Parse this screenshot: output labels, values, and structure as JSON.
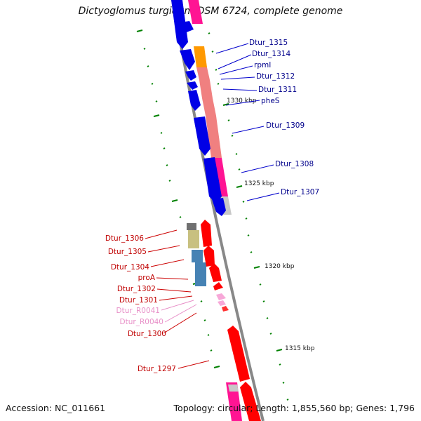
{
  "title": "Dictyoglomus turgidum DSM 6724, complete genome",
  "footer": {
    "accession_label": "Accession:",
    "accession": "NC_011661",
    "topology_label": "Topology:",
    "topology": "circular",
    "length_label": "Length:",
    "length": "1,855,560 bp",
    "genes_label": "Genes:",
    "genes": "1,796"
  },
  "scale_labels": [
    "1330 kbp",
    "1325 kbp",
    "1320 kbp",
    "1315 kbp"
  ],
  "colors": {
    "forward_gene": "#0000e6",
    "reverse_gene": "#ff0000",
    "label_forward": "#00008b",
    "label_reverse": "#c00000",
    "label_rna": "#e890c8",
    "cog_pink": "#ff1493",
    "cog_salmon": "#f08080",
    "cog_orange": "#ff9900",
    "cog_khaki": "#c8c080",
    "cog_steel": "#4682b4",
    "cog_grey": "#c8c8c8",
    "cog_dark": "#707070",
    "tick": "#008000",
    "backbone": "#888888"
  },
  "forward_labels": [
    "Dtur_1315",
    "Dtur_1314",
    "rpmI",
    "Dtur_1312",
    "Dtur_1311",
    "pheS",
    "Dtur_1309",
    "Dtur_1308",
    "Dtur_1307"
  ],
  "reverse_labels": [
    "Dtur_1306",
    "Dtur_1305",
    "Dtur_1304",
    "proA",
    "Dtur_1302",
    "Dtur_1301",
    "Dtur_R0041",
    "Dtur_R0040",
    "Dtur_1300",
    "Dtur_1297"
  ]
}
